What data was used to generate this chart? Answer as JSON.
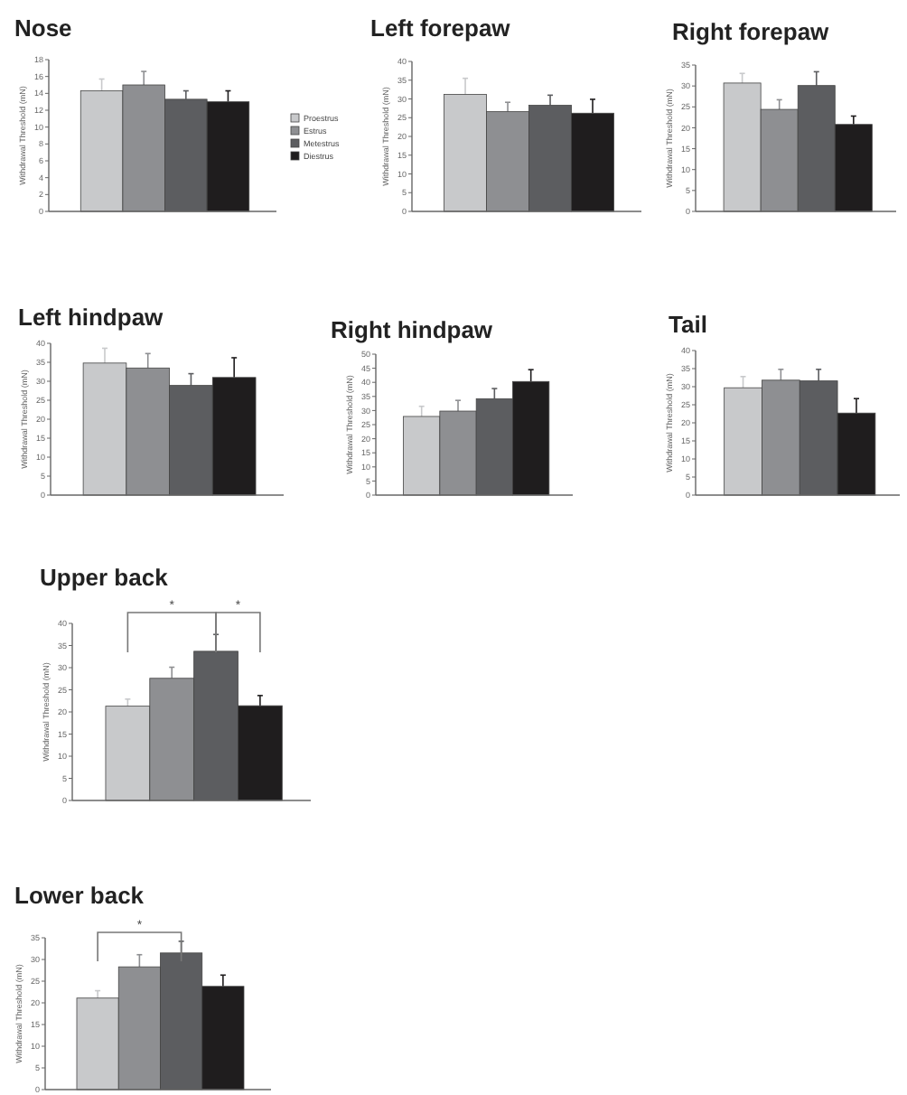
{
  "chart_data": [
    {
      "type": "bar",
      "title": "Nose",
      "ylabel": "Withdrawal Threshold (mN)",
      "categories": [
        null
      ],
      "legend": "right",
      "ylim": [
        0,
        18
      ],
      "yticks": [
        0,
        2,
        4,
        6,
        8,
        10,
        12,
        14,
        16,
        18
      ],
      "series": [
        {
          "name": "Proestrus",
          "color": "#c8c9cb",
          "values": [
            14.3
          ],
          "errors": [
            1.4
          ]
        },
        {
          "name": "Estrus",
          "color": "#8e8f92",
          "values": [
            15
          ],
          "errors": [
            1.6
          ]
        },
        {
          "name": "Metestrus",
          "color": "#5c5d60",
          "values": [
            13.3
          ],
          "errors": [
            1
          ]
        },
        {
          "name": "Diestrus",
          "color": "#1f1d1e",
          "values": [
            13
          ],
          "errors": [
            1.3
          ]
        }
      ]
    },
    {
      "type": "bar",
      "title": "Left forepaw",
      "ylabel": "Withdrawal Threshold (mN)",
      "categories": [
        null
      ],
      "ylim": [
        0,
        40
      ],
      "yticks": [
        0,
        5,
        10,
        15,
        20,
        25,
        30,
        35,
        40
      ],
      "series": [
        {
          "color": "#c8c9cb",
          "values": [
            31.2
          ],
          "errors": [
            4.3
          ]
        },
        {
          "color": "#8e8f92",
          "values": [
            26.6
          ],
          "errors": [
            2.5
          ]
        },
        {
          "color": "#5c5d60",
          "values": [
            28.3
          ],
          "errors": [
            2.7
          ]
        },
        {
          "color": "#1f1d1e",
          "values": [
            26.2
          ],
          "errors": [
            3.7
          ]
        }
      ]
    },
    {
      "type": "bar",
      "title": "Right forepaw",
      "ylabel": "Withdrawal Threshold (mN)",
      "categories": [
        null
      ],
      "ylim": [
        0,
        35
      ],
      "yticks": [
        0,
        5,
        10,
        15,
        20,
        25,
        30,
        35
      ],
      "series": [
        {
          "color": "#c8c9cb",
          "values": [
            30.7
          ],
          "errors": [
            2.3
          ]
        },
        {
          "color": "#8e8f92",
          "values": [
            24.4
          ],
          "errors": [
            2.3
          ]
        },
        {
          "color": "#5c5d60",
          "values": [
            30.1
          ],
          "errors": [
            3.3
          ]
        },
        {
          "color": "#1f1d1e",
          "values": [
            20.8
          ],
          "errors": [
            2
          ]
        }
      ]
    },
    {
      "type": "bar",
      "title": "Left hindpaw",
      "ylabel": "Withdrawal Threshold (mN)",
      "categories": [
        null
      ],
      "ylim": [
        0,
        40
      ],
      "yticks": [
        0,
        5,
        10,
        15,
        20,
        25,
        30,
        35,
        40
      ],
      "series": [
        {
          "color": "#c8c9cb",
          "values": [
            34.8
          ],
          "errors": [
            3.9
          ]
        },
        {
          "color": "#8e8f92",
          "values": [
            33.5
          ],
          "errors": [
            3.8
          ]
        },
        {
          "color": "#5c5d60",
          "values": [
            28.9
          ],
          "errors": [
            3.1
          ]
        },
        {
          "color": "#1f1d1e",
          "values": [
            31
          ],
          "errors": [
            5.2
          ]
        }
      ]
    },
    {
      "type": "bar",
      "title": "Right hindpaw",
      "ylabel": "Withdrawal Threshold (mN)",
      "categories": [
        null
      ],
      "ylim": [
        0,
        50
      ],
      "yticks": [
        0,
        5,
        10,
        15,
        20,
        25,
        30,
        35,
        40,
        45,
        50
      ],
      "series": [
        {
          "color": "#c8c9cb",
          "values": [
            27.9
          ],
          "errors": [
            3.6
          ]
        },
        {
          "color": "#8e8f92",
          "values": [
            29.8
          ],
          "errors": [
            3.8
          ]
        },
        {
          "color": "#5c5d60",
          "values": [
            34.2
          ],
          "errors": [
            3.6
          ]
        },
        {
          "color": "#1f1d1e",
          "values": [
            40.3
          ],
          "errors": [
            4.2
          ]
        }
      ]
    },
    {
      "type": "bar",
      "title": "Tail",
      "ylabel": "Withdrawal Threshold (mN)",
      "categories": [
        null
      ],
      "ylim": [
        0,
        40
      ],
      "yticks": [
        0,
        5,
        10,
        15,
        20,
        25,
        30,
        35,
        40
      ],
      "series": [
        {
          "color": "#c8c9cb",
          "values": [
            29.7
          ],
          "errors": [
            3.1
          ]
        },
        {
          "color": "#8e8f92",
          "values": [
            31.8
          ],
          "errors": [
            3
          ]
        },
        {
          "color": "#5c5d60",
          "values": [
            31.6
          ],
          "errors": [
            3.2
          ]
        },
        {
          "color": "#1f1d1e",
          "values": [
            22.7
          ],
          "errors": [
            4
          ]
        }
      ]
    },
    {
      "type": "bar",
      "title": "Upper back",
      "ylabel": "Withdrawal Threshold (mN)",
      "categories": [
        null
      ],
      "ylim": [
        0,
        40
      ],
      "yticks": [
        0,
        5,
        10,
        15,
        20,
        25,
        30,
        35,
        40
      ],
      "annotations": [
        "*",
        "*"
      ],
      "series": [
        {
          "color": "#c8c9cb",
          "values": [
            21.3
          ],
          "errors": [
            1.6
          ]
        },
        {
          "color": "#8e8f92",
          "values": [
            27.6
          ],
          "errors": [
            2.5
          ]
        },
        {
          "color": "#5c5d60",
          "values": [
            33.7
          ],
          "errors": [
            3.8
          ]
        },
        {
          "color": "#1f1d1e",
          "values": [
            21.4
          ],
          "errors": [
            2.3
          ]
        }
      ]
    },
    {
      "type": "bar",
      "title": "Lower back",
      "ylabel": "Withdrawal Threshold (mN)",
      "categories": [
        null
      ],
      "ylim": [
        0,
        35
      ],
      "yticks": [
        0,
        5,
        10,
        15,
        20,
        25,
        30,
        35
      ],
      "annotations": [
        "*"
      ],
      "series": [
        {
          "color": "#c8c9cb",
          "values": [
            21.1
          ],
          "errors": [
            1.7
          ]
        },
        {
          "color": "#8e8f92",
          "values": [
            28.3
          ],
          "errors": [
            2.8
          ]
        },
        {
          "color": "#5c5d60",
          "values": [
            31.5
          ],
          "errors": [
            2.7
          ]
        },
        {
          "color": "#1f1d1e",
          "values": [
            23.8
          ],
          "errors": [
            2.6
          ]
        }
      ]
    }
  ]
}
